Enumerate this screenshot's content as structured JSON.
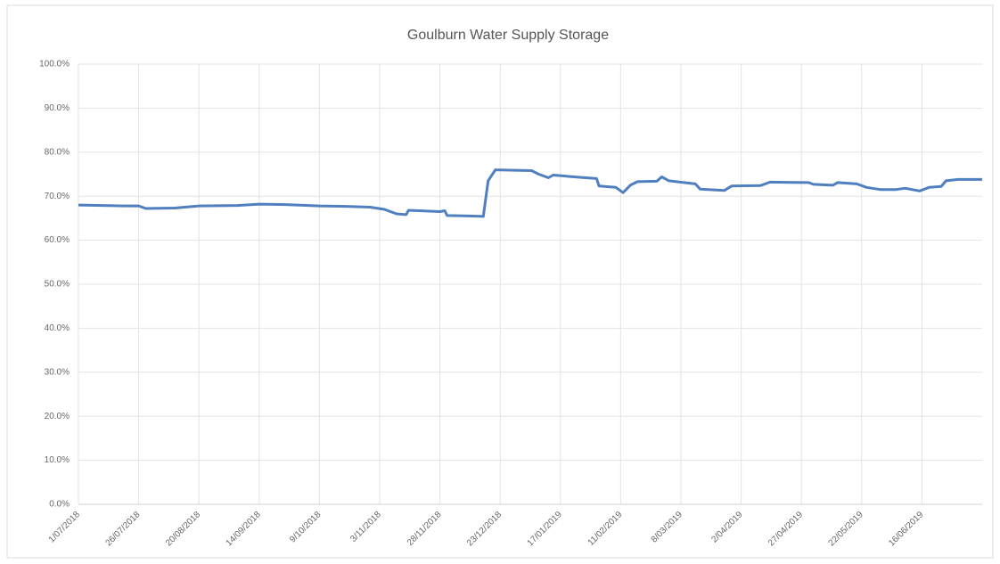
{
  "chart_data": {
    "type": "line",
    "title": "Goulburn Water Supply Storage",
    "x": [
      "2018-07-01",
      "2018-07-20",
      "2018-07-26",
      "2018-07-29",
      "2018-08-10",
      "2018-08-20",
      "2018-09-05",
      "2018-09-14",
      "2018-09-25",
      "2018-10-09",
      "2018-10-20",
      "2018-10-30",
      "2018-11-05",
      "2018-11-10",
      "2018-11-14",
      "2018-11-15",
      "2018-11-28",
      "2018-11-30",
      "2018-12-01",
      "2018-12-10",
      "2018-12-16",
      "2018-12-18",
      "2018-12-21",
      "2019-01-05",
      "2019-01-08",
      "2019-01-12",
      "2019-01-14",
      "2019-01-25",
      "2019-02-01",
      "2019-02-02",
      "2019-02-09",
      "2019-02-12",
      "2019-02-15",
      "2019-02-18",
      "2019-02-26",
      "2019-02-28",
      "2019-03-03",
      "2019-03-14",
      "2019-03-16",
      "2019-03-26",
      "2019-03-29",
      "2019-04-10",
      "2019-04-14",
      "2019-04-30",
      "2019-05-02",
      "2019-05-10",
      "2019-05-12",
      "2019-05-20",
      "2019-05-24",
      "2019-05-30",
      "2019-06-05",
      "2019-06-09",
      "2019-06-15",
      "2019-06-19",
      "2019-06-24",
      "2019-06-26",
      "2019-07-01",
      "2019-07-11"
    ],
    "series": [
      {
        "color": "#4f7fbf",
        "values": [
          68.0,
          67.8,
          67.8,
          67.2,
          67.3,
          67.8,
          67.9,
          68.2,
          68.1,
          67.8,
          67.7,
          67.5,
          67.0,
          66.0,
          65.8,
          66.8,
          66.5,
          66.7,
          65.6,
          65.5,
          65.4,
          73.5,
          76.0,
          75.8,
          75.0,
          74.2,
          74.8,
          74.3,
          74.0,
          72.3,
          72.0,
          70.8,
          72.5,
          73.3,
          73.4,
          74.4,
          73.5,
          72.8,
          71.6,
          71.3,
          72.3,
          72.4,
          73.2,
          73.1,
          72.7,
          72.5,
          73.1,
          72.8,
          72.0,
          71.5,
          71.5,
          71.8,
          71.2,
          72.0,
          72.2,
          73.5,
          73.8,
          73.8
        ]
      }
    ],
    "xlim": [
      "2018-07-01",
      "2019-07-11"
    ],
    "xticks": [
      {
        "value": "2018-07-01",
        "label": "1/07/2018"
      },
      {
        "value": "2018-07-26",
        "label": "26/07/2018"
      },
      {
        "value": "2018-08-20",
        "label": "20/08/2018"
      },
      {
        "value": "2018-09-14",
        "label": "14/09/2018"
      },
      {
        "value": "2018-10-09",
        "label": "9/10/2018"
      },
      {
        "value": "2018-11-03",
        "label": "3/11/2018"
      },
      {
        "value": "2018-11-28",
        "label": "28/11/2018"
      },
      {
        "value": "2018-12-23",
        "label": "23/12/2018"
      },
      {
        "value": "2019-01-17",
        "label": "17/01/2019"
      },
      {
        "value": "2019-02-11",
        "label": "11/02/2019"
      },
      {
        "value": "2019-03-08",
        "label": "8/03/2019"
      },
      {
        "value": "2019-04-02",
        "label": "2/04/2019"
      },
      {
        "value": "2019-04-27",
        "label": "27/04/2019"
      },
      {
        "value": "2019-05-22",
        "label": "22/05/2019"
      },
      {
        "value": "2019-06-16",
        "label": "16/06/2019"
      }
    ],
    "ylim": [
      0,
      100
    ],
    "yticks": [
      {
        "value": 0,
        "label": "0.0%"
      },
      {
        "value": 10,
        "label": "10.0%"
      },
      {
        "value": 20,
        "label": "20.0%"
      },
      {
        "value": 30,
        "label": "30.0%"
      },
      {
        "value": 40,
        "label": "40.0%"
      },
      {
        "value": 50,
        "label": "50.0%"
      },
      {
        "value": 60,
        "label": "60.0%"
      },
      {
        "value": 70,
        "label": "70.0%"
      },
      {
        "value": 80,
        "label": "80.0%"
      },
      {
        "value": 90,
        "label": "90.0%"
      },
      {
        "value": 100,
        "label": "100.0%"
      }
    ],
    "grid": true
  }
}
